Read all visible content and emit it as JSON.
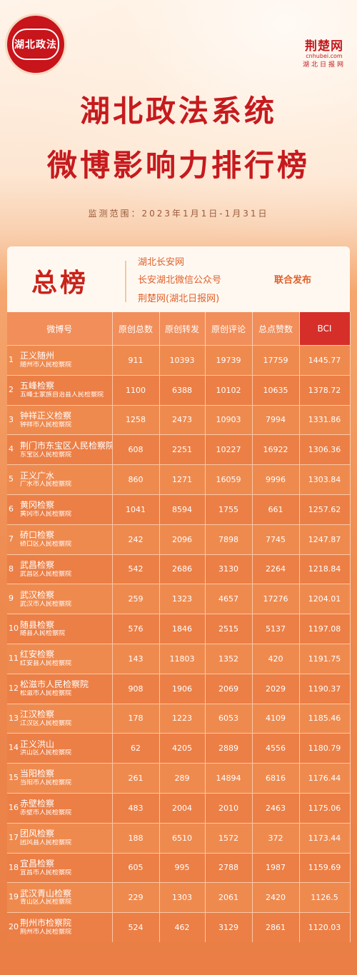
{
  "logo_left": {
    "text": "湖北政法"
  },
  "logo_right": {
    "name": "荆楚网",
    "url": "cnhubei.com",
    "sub": "湖北日报网"
  },
  "title": {
    "line1": "湖北政法系统",
    "line2": "微博影响力排行榜"
  },
  "period": "监测范围：2023年1月1日-1月31日",
  "panel": {
    "title": "总榜",
    "publishers": [
      "湖北长安网",
      "长安湖北微信公众号",
      "荆楚网(湖北日报网)"
    ],
    "joint_label": "联合发布"
  },
  "table": {
    "headers": [
      "微博号",
      "原创总数",
      "原创转发",
      "原创评论",
      "总点赞数",
      "BCI"
    ],
    "rows": [
      {
        "rank": "1",
        "name": "正义随州",
        "org": "随州市人民检察院",
        "posts": "911",
        "reposts": "10393",
        "comments": "19739",
        "likes": "17759",
        "bci": "1445.77"
      },
      {
        "rank": "2",
        "name": "五峰检察",
        "org": "五峰土家族自治县人民检察院",
        "posts": "1100",
        "reposts": "6388",
        "comments": "10102",
        "likes": "10635",
        "bci": "1378.72"
      },
      {
        "rank": "3",
        "name": "钟祥正义检察",
        "org": "钟祥市人民检察院",
        "posts": "1258",
        "reposts": "2473",
        "comments": "10903",
        "likes": "7994",
        "bci": "1331.86"
      },
      {
        "rank": "4",
        "name": "荆门市东宝区人民检察院",
        "org": "东宝区人民检察院",
        "posts": "608",
        "reposts": "2251",
        "comments": "10227",
        "likes": "16922",
        "bci": "1306.36"
      },
      {
        "rank": "5",
        "name": "正义广水",
        "org": "广水市人民检察院",
        "posts": "860",
        "reposts": "1271",
        "comments": "16059",
        "likes": "9996",
        "bci": "1303.84"
      },
      {
        "rank": "6",
        "name": "黄冈检察",
        "org": "黄冈市人民检察院",
        "posts": "1041",
        "reposts": "8594",
        "comments": "1755",
        "likes": "661",
        "bci": "1257.62"
      },
      {
        "rank": "7",
        "name": "硚口检察",
        "org": "硚口区人民检察院",
        "posts": "242",
        "reposts": "2096",
        "comments": "7898",
        "likes": "7745",
        "bci": "1247.87"
      },
      {
        "rank": "8",
        "name": "武昌检察",
        "org": "武昌区人民检察院",
        "posts": "542",
        "reposts": "2686",
        "comments": "3130",
        "likes": "2264",
        "bci": "1218.84"
      },
      {
        "rank": "9",
        "name": "武汉检察",
        "org": "武汉市人民检察院",
        "posts": "259",
        "reposts": "1323",
        "comments": "4657",
        "likes": "17276",
        "bci": "1204.01"
      },
      {
        "rank": "10",
        "name": "随县检察",
        "org": "随县人民检察院",
        "posts": "576",
        "reposts": "1846",
        "comments": "2515",
        "likes": "5137",
        "bci": "1197.08"
      },
      {
        "rank": "11",
        "name": "红安检察",
        "org": "红安县人民检察院",
        "posts": "143",
        "reposts": "11803",
        "comments": "1352",
        "likes": "420",
        "bci": "1191.75"
      },
      {
        "rank": "12",
        "name": "松滋市人民检察院",
        "org": "松滋市人民检察院",
        "posts": "908",
        "reposts": "1906",
        "comments": "2069",
        "likes": "2029",
        "bci": "1190.37"
      },
      {
        "rank": "13",
        "name": "江汉检察",
        "org": "江汉区人民检察院",
        "posts": "178",
        "reposts": "1223",
        "comments": "6053",
        "likes": "4109",
        "bci": "1185.46"
      },
      {
        "rank": "14",
        "name": "正义洪山",
        "org": "洪山区人民检察院",
        "posts": "62",
        "reposts": "4205",
        "comments": "2889",
        "likes": "4556",
        "bci": "1180.79"
      },
      {
        "rank": "15",
        "name": "当阳检察",
        "org": "当阳市人民检察院",
        "posts": "261",
        "reposts": "289",
        "comments": "14894",
        "likes": "6816",
        "bci": "1176.44"
      },
      {
        "rank": "16",
        "name": "赤壁检察",
        "org": "赤壁市人民检察院",
        "posts": "483",
        "reposts": "2004",
        "comments": "2010",
        "likes": "2463",
        "bci": "1175.06"
      },
      {
        "rank": "17",
        "name": "团风检察",
        "org": "团风县人民检察院",
        "posts": "188",
        "reposts": "6510",
        "comments": "1572",
        "likes": "372",
        "bci": "1173.44"
      },
      {
        "rank": "18",
        "name": "宜昌检察",
        "org": "宜昌市人民检察院",
        "posts": "605",
        "reposts": "995",
        "comments": "2788",
        "likes": "1987",
        "bci": "1159.69"
      },
      {
        "rank": "19",
        "name": "武汉青山检察",
        "org": "青山区人民检察院",
        "posts": "229",
        "reposts": "1303",
        "comments": "2061",
        "likes": "2420",
        "bci": "1126.5"
      },
      {
        "rank": "20",
        "name": "荆州市检察院",
        "org": "荆州市人民检察院",
        "posts": "524",
        "reposts": "462",
        "comments": "3129",
        "likes": "2861",
        "bci": "1120.03"
      }
    ]
  }
}
